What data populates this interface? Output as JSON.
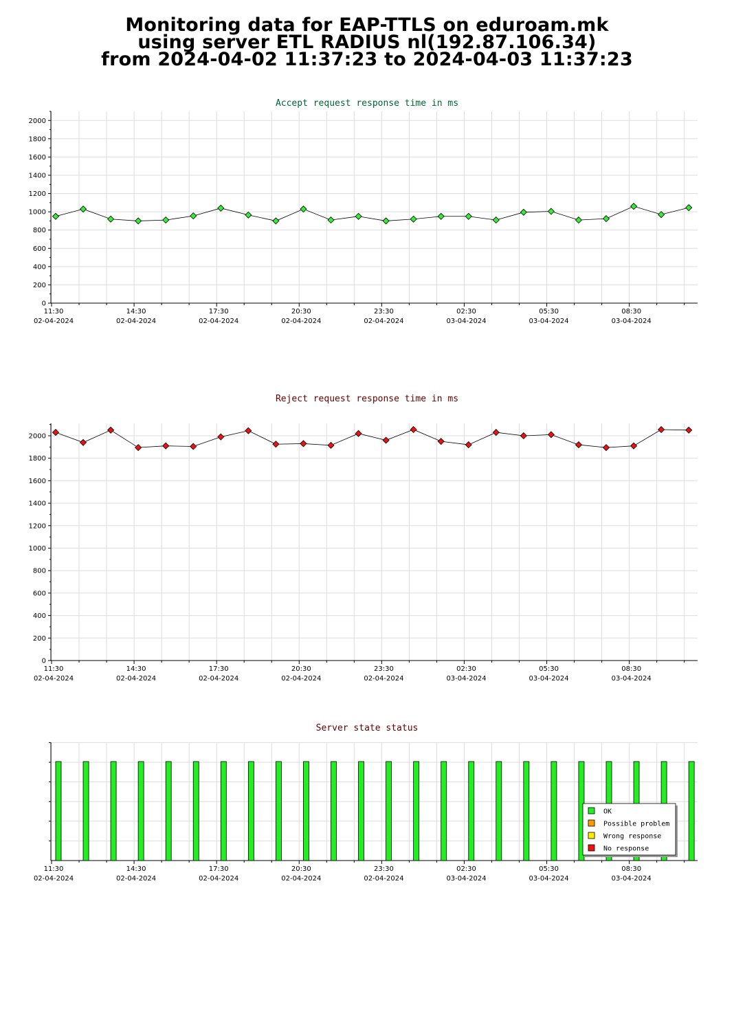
{
  "title": {
    "line1": "Monitoring data for EAP-TTLS on eduroam.mk",
    "line2": "using server ETL RADIUS nl(192.87.106.34)",
    "line3": "from 2024-04-02 11:37:23 to 2024-04-03 11:37:23"
  },
  "x_ticks": [
    {
      "time": "11:30",
      "date": "02-04-2024"
    },
    {
      "time": "14:30",
      "date": "02-04-2024"
    },
    {
      "time": "17:30",
      "date": "02-04-2024"
    },
    {
      "time": "20:30",
      "date": "02-04-2024"
    },
    {
      "time": "23:30",
      "date": "02-04-2024"
    },
    {
      "time": "02:30",
      "date": "03-04-2024"
    },
    {
      "time": "05:30",
      "date": "03-04-2024"
    },
    {
      "time": "08:30",
      "date": "03-04-2024"
    }
  ],
  "colors": {
    "accept_title": "#006633",
    "reject_title": "#660000",
    "status_title": "#660000",
    "accept_marker": "#33ee33",
    "reject_marker": "#ee1111",
    "ok": "#22ee22",
    "possible_problem": "#ff9900",
    "wrong_response": "#ffee00",
    "no_response": "#ee1111",
    "grid": "#dddddd"
  },
  "chart_data": [
    {
      "type": "line",
      "title": "Accept request response time in ms",
      "x": [
        "11:40",
        "12:40",
        "13:40",
        "14:40",
        "15:40",
        "16:40",
        "17:40",
        "18:40",
        "19:40",
        "20:40",
        "21:40",
        "22:40",
        "23:40",
        "00:40",
        "01:40",
        "02:40",
        "03:40",
        "04:40",
        "05:40",
        "06:40",
        "07:40",
        "08:40",
        "09:40",
        "10:40"
      ],
      "values": [
        950,
        1030,
        920,
        900,
        910,
        955,
        1040,
        965,
        900,
        1030,
        910,
        950,
        900,
        920,
        950,
        950,
        910,
        995,
        1005,
        910,
        925,
        1060,
        970,
        1045
      ],
      "ylim": [
        0,
        2100
      ],
      "yticks": [
        0,
        200,
        400,
        600,
        800,
        1000,
        1200,
        1400,
        1600,
        1800,
        2000
      ],
      "grid": true
    },
    {
      "type": "line",
      "title": "Reject request response time in ms",
      "x": [
        "11:40",
        "12:40",
        "13:40",
        "14:40",
        "15:40",
        "16:40",
        "17:40",
        "18:40",
        "19:40",
        "20:40",
        "21:40",
        "22:40",
        "23:40",
        "00:40",
        "01:40",
        "02:40",
        "03:40",
        "04:40",
        "05:40",
        "06:40",
        "07:40",
        "08:40",
        "09:40",
        "10:40"
      ],
      "values": [
        2030,
        1940,
        2050,
        1895,
        1910,
        1905,
        1990,
        2045,
        1925,
        1930,
        1915,
        2020,
        1960,
        2055,
        1950,
        1920,
        2030,
        2000,
        2010,
        1920,
        1895,
        1910,
        2055,
        2050
      ],
      "ylim": [
        0,
        2110
      ],
      "yticks": [
        0,
        200,
        400,
        600,
        800,
        1000,
        1200,
        1400,
        1600,
        1800,
        2000
      ],
      "grid": true
    },
    {
      "type": "bar",
      "title": "Server state status",
      "x": [
        "11:40",
        "12:40",
        "13:40",
        "14:40",
        "15:40",
        "16:40",
        "17:40",
        "18:40",
        "19:40",
        "20:40",
        "21:40",
        "22:40",
        "23:40",
        "00:40",
        "01:40",
        "02:40",
        "03:40",
        "04:40",
        "05:40",
        "06:40",
        "07:40",
        "08:40",
        "09:40",
        "10:40"
      ],
      "values": [
        "OK",
        "OK",
        "OK",
        "OK",
        "OK",
        "OK",
        "OK",
        "OK",
        "OK",
        "OK",
        "OK",
        "OK",
        "OK",
        "OK",
        "OK",
        "OK",
        "OK",
        "OK",
        "OK",
        "OK",
        "OK",
        "OK",
        "OK",
        "OK"
      ],
      "legend": [
        "OK",
        "Possible problem",
        "Wrong response",
        "No response"
      ],
      "legend_position": "bottom-right",
      "grid": true
    }
  ]
}
